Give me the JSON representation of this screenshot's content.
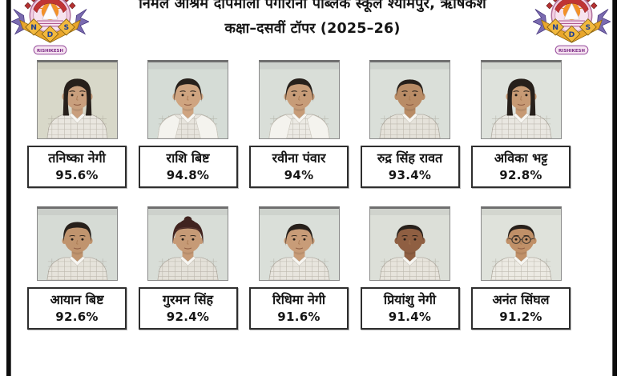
{
  "poster": {
    "title_line1": "निर्मल आश्रम दीपमाला पगारानी पब्लिक स्कूल श्यामपुर, ऋषिकेश",
    "title_line2": "कक्षा–दसवीं टॉपर (2025–26)"
  },
  "logo": {
    "letters": [
      "N",
      "D",
      "S"
    ],
    "ribbon_text": "RISHIKESH"
  },
  "colors": {
    "frame_border": "#0d0d0d",
    "name_box_border": "#2e2e2e",
    "photo_border": "#8a8a8a",
    "logo_gold": "#e9a62b",
    "logo_red": "#b53131",
    "logo_purple": "#7a6bb0",
    "logo_pink": "#f3cfe3",
    "turban": "#40231f"
  },
  "students": [
    {
      "name": "तनिष्का नेगी",
      "percentage": "95.6%",
      "avatar": {
        "style": "girl-long",
        "glasses": false,
        "vest": false,
        "skin": "#c99f7d",
        "bg": "#d8d8c9",
        "shirt": "#e9e6df"
      }
    },
    {
      "name": "राशि बिष्ट",
      "percentage": "94.8%",
      "avatar": {
        "style": "girl-tied",
        "glasses": false,
        "vest": true,
        "skin": "#cfa480",
        "bg": "#d5dcd6",
        "shirt": "#e7e4dd"
      }
    },
    {
      "name": "रवीना पंवार",
      "percentage": "94%",
      "avatar": {
        "style": "girl-tied",
        "glasses": false,
        "vest": true,
        "skin": "#c79c78",
        "bg": "#d9ded8",
        "shirt": "#eceae4"
      }
    },
    {
      "name": "रुद्र सिंह रावत",
      "percentage": "93.4%",
      "avatar": {
        "style": "boy-short",
        "glasses": false,
        "vest": false,
        "skin": "#b98c66",
        "bg": "#dadfd9",
        "shirt": "#e5e2da"
      }
    },
    {
      "name": "अविका भट्ट",
      "percentage": "92.8%",
      "avatar": {
        "style": "girl-long",
        "glasses": false,
        "vest": false,
        "skin": "#c79a74",
        "bg": "#dee2dc",
        "shirt": "#e9e7e1"
      }
    },
    {
      "name": "आयान बिष्ट",
      "percentage": "92.6%",
      "avatar": {
        "style": "boy-fluffy",
        "glasses": false,
        "vest": false,
        "skin": "#c0946e",
        "bg": "#d6dbd5",
        "shirt": "#e6e3db"
      }
    },
    {
      "name": "गुरमन सिंह",
      "percentage": "92.4%",
      "avatar": {
        "style": "turban",
        "glasses": false,
        "vest": false,
        "skin": "#c69a76",
        "bg": "#d8ddd7",
        "shirt": "#e4e1d9"
      }
    },
    {
      "name": "रिधिमा नेगी",
      "percentage": "91.6%",
      "avatar": {
        "style": "girl-tied",
        "glasses": false,
        "vest": false,
        "skin": "#c89c78",
        "bg": "#dadfd9",
        "shirt": "#e8e5de"
      }
    },
    {
      "name": "प्रियांशु नेगी",
      "percentage": "91.4%",
      "avatar": {
        "style": "boy-short",
        "glasses": false,
        "vest": false,
        "skin": "#8f5f42",
        "bg": "#dcdfd8",
        "shirt": "#e7e4dc"
      }
    },
    {
      "name": "अनंत सिंघल",
      "percentage": "91.2%",
      "avatar": {
        "style": "boy-short",
        "glasses": true,
        "vest": false,
        "skin": "#c09068",
        "bg": "#dfe2db",
        "shirt": "#eceae3"
      }
    }
  ]
}
